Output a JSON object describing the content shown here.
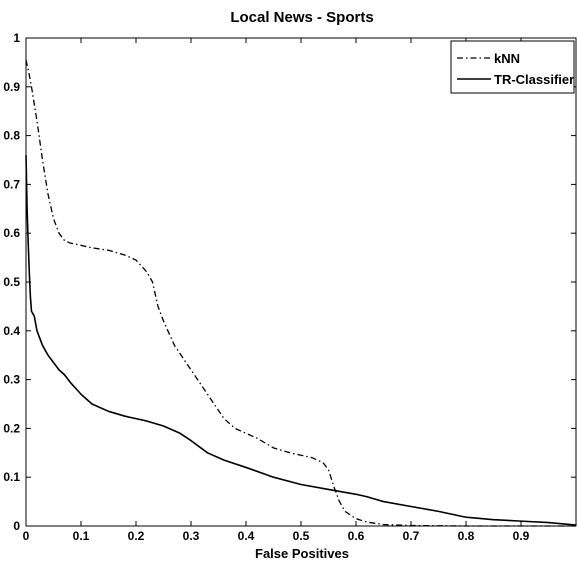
{
  "chart_data": {
    "type": "line",
    "title": "Local News - Sports",
    "xlabel": "False Positives",
    "ylabel": "",
    "xlim": [
      0,
      1
    ],
    "ylim": [
      0,
      1
    ],
    "xticks": [
      0,
      0.1,
      0.2,
      0.3,
      0.4,
      0.5,
      0.6,
      0.7,
      0.8,
      0.9
    ],
    "yticks": [
      0,
      0.1,
      0.2,
      0.3,
      0.4,
      0.5,
      0.6,
      0.7,
      0.8,
      0.9,
      1
    ],
    "grid": false,
    "legend_position": "top-right",
    "series": [
      {
        "name": "kNN",
        "style": "dash-dot",
        "color": "#000000",
        "x": [
          0,
          0.005,
          0.01,
          0.02,
          0.03,
          0.04,
          0.05,
          0.06,
          0.07,
          0.08,
          0.1,
          0.12,
          0.15,
          0.18,
          0.2,
          0.22,
          0.23,
          0.24,
          0.25,
          0.27,
          0.3,
          0.33,
          0.36,
          0.38,
          0.4,
          0.42,
          0.45,
          0.48,
          0.5,
          0.52,
          0.54,
          0.55,
          0.56,
          0.57,
          0.58,
          0.6,
          0.62,
          0.65,
          0.7,
          0.8,
          0.9,
          1.0
        ],
        "y": [
          0.955,
          0.93,
          0.9,
          0.83,
          0.75,
          0.68,
          0.63,
          0.6,
          0.585,
          0.58,
          0.575,
          0.57,
          0.565,
          0.555,
          0.545,
          0.52,
          0.5,
          0.45,
          0.42,
          0.37,
          0.32,
          0.27,
          0.22,
          0.2,
          0.19,
          0.18,
          0.16,
          0.15,
          0.145,
          0.14,
          0.13,
          0.115,
          0.08,
          0.05,
          0.03,
          0.015,
          0.008,
          0.003,
          0.001,
          0.0,
          0.0,
          0.0
        ]
      },
      {
        "name": "TR-Classifier",
        "style": "solid",
        "color": "#000000",
        "x": [
          0,
          0.002,
          0.004,
          0.006,
          0.008,
          0.01,
          0.015,
          0.02,
          0.03,
          0.04,
          0.05,
          0.06,
          0.07,
          0.08,
          0.1,
          0.12,
          0.15,
          0.18,
          0.2,
          0.22,
          0.25,
          0.28,
          0.3,
          0.33,
          0.36,
          0.4,
          0.45,
          0.5,
          0.55,
          0.6,
          0.62,
          0.65,
          0.7,
          0.75,
          0.8,
          0.85,
          0.9,
          0.95,
          1.0
        ],
        "y": [
          0.76,
          0.65,
          0.58,
          0.52,
          0.47,
          0.44,
          0.43,
          0.4,
          0.37,
          0.35,
          0.335,
          0.32,
          0.31,
          0.295,
          0.27,
          0.25,
          0.235,
          0.225,
          0.22,
          0.215,
          0.205,
          0.19,
          0.175,
          0.15,
          0.135,
          0.12,
          0.1,
          0.085,
          0.075,
          0.065,
          0.06,
          0.05,
          0.04,
          0.03,
          0.018,
          0.013,
          0.01,
          0.007,
          0.002
        ]
      }
    ]
  }
}
